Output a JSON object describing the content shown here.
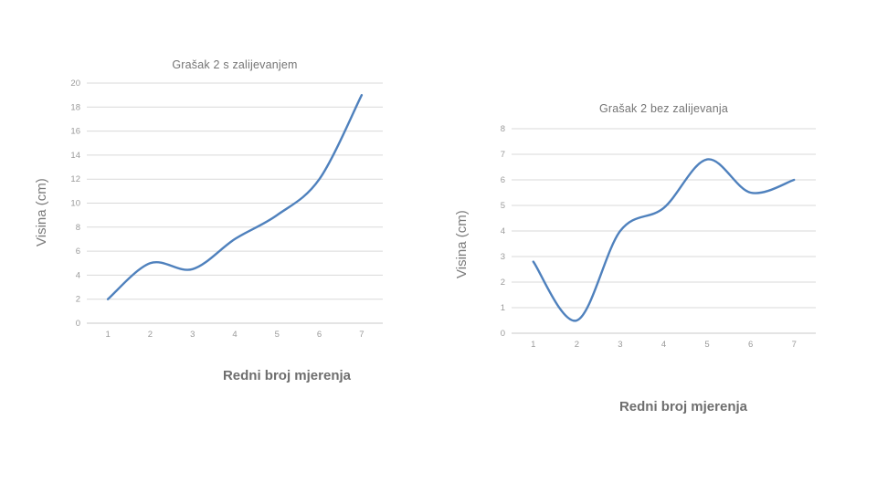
{
  "page": {
    "background": "#ffffff"
  },
  "colors": {
    "series_line": "#4f81bd",
    "gridline": "#d9d9d9",
    "axis_line": "#c9c9c9",
    "tick_label": "#9a9a9a",
    "chart_title": "#757575",
    "axis_title": "#6e6e6e"
  },
  "chart_data": [
    {
      "type": "line",
      "title": "Grašak 2 s zalijevanjem",
      "categories": [
        "1",
        "2",
        "3",
        "4",
        "5",
        "6",
        "7"
      ],
      "values": [
        2,
        5,
        4.5,
        7,
        9,
        12,
        19
      ],
      "xlabel": "Redni broj mjerenja",
      "ylabel": "Visina (cm)",
      "ylim": [
        0,
        20
      ],
      "ystep": 2,
      "grid": true,
      "legend": "none",
      "smoothed": true,
      "line_color": "#4f81bd"
    },
    {
      "type": "line",
      "title": "Grašak 2 bez zalijevanja",
      "categories": [
        "1",
        "2",
        "3",
        "4",
        "5",
        "6",
        "7"
      ],
      "values": [
        2.8,
        0.5,
        4,
        4.9,
        6.8,
        5.5,
        6
      ],
      "xlabel": "Redni broj mjerenja",
      "ylabel": "Visina (cm)",
      "ylim": [
        0,
        8
      ],
      "ystep": 1,
      "grid": true,
      "legend": "none",
      "smoothed": true,
      "line_color": "#4f81bd"
    }
  ]
}
